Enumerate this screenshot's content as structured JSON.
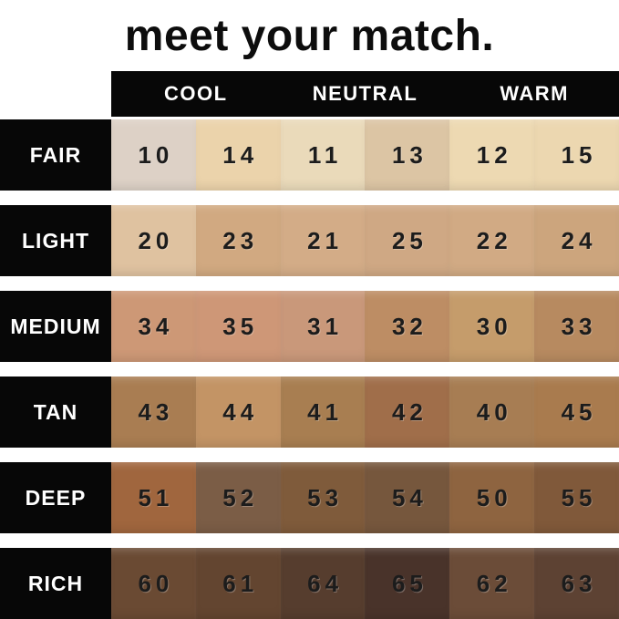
{
  "title": "meet your match.",
  "palette": {
    "background": "#ffffff",
    "bar_black": "#070707",
    "label_text": "#ffffff",
    "number_text": "#1c1c1c",
    "title_text": "#0d0d0d"
  },
  "chart_data": {
    "type": "table",
    "title": "meet your match.",
    "column_groups": [
      "COOL",
      "NEUTRAL",
      "WARM"
    ],
    "row_labels": [
      "FAIR",
      "LIGHT",
      "MEDIUM",
      "TAN",
      "DEEP",
      "RICH"
    ],
    "rows": [
      {
        "label": "FAIR",
        "shades": [
          {
            "number": "10",
            "color": "#ddd1c6"
          },
          {
            "number": "14",
            "color": "#ebd3ab"
          },
          {
            "number": "11",
            "color": "#eadaba"
          },
          {
            "number": "13",
            "color": "#dcc5a4"
          },
          {
            "number": "12",
            "color": "#edd9b2"
          },
          {
            "number": "15",
            "color": "#ecd7b0"
          }
        ]
      },
      {
        "label": "LIGHT",
        "shades": [
          {
            "number": "20",
            "color": "#dfc2a0"
          },
          {
            "number": "23",
            "color": "#d1a981"
          },
          {
            "number": "21",
            "color": "#d3ac87"
          },
          {
            "number": "25",
            "color": "#cfa884"
          },
          {
            "number": "22",
            "color": "#d1aa84"
          },
          {
            "number": "24",
            "color": "#cca57d"
          }
        ]
      },
      {
        "label": "MEDIUM",
        "shades": [
          {
            "number": "34",
            "color": "#cd9876"
          },
          {
            "number": "35",
            "color": "#ce9777"
          },
          {
            "number": "31",
            "color": "#c9987a"
          },
          {
            "number": "32",
            "color": "#bd8d64"
          },
          {
            "number": "30",
            "color": "#c59c6b"
          },
          {
            "number": "33",
            "color": "#b78a60"
          }
        ]
      },
      {
        "label": "TAN",
        "shades": [
          {
            "number": "43",
            "color": "#a97d52"
          },
          {
            "number": "44",
            "color": "#c39465"
          },
          {
            "number": "41",
            "color": "#a87e51"
          },
          {
            "number": "42",
            "color": "#a06e4a"
          },
          {
            "number": "40",
            "color": "#a77d53"
          },
          {
            "number": "45",
            "color": "#a97b4e"
          }
        ]
      },
      {
        "label": "DEEP",
        "shades": [
          {
            "number": "51",
            "color": "#a0663e"
          },
          {
            "number": "52",
            "color": "#7b5d46"
          },
          {
            "number": "53",
            "color": "#7f5b3b"
          },
          {
            "number": "54",
            "color": "#76573d"
          },
          {
            "number": "50",
            "color": "#8e6440"
          },
          {
            "number": "55",
            "color": "#80593a"
          }
        ]
      },
      {
        "label": "RICH",
        "shades": [
          {
            "number": "60",
            "color": "#6a4a33"
          },
          {
            "number": "61",
            "color": "#634530"
          },
          {
            "number": "64",
            "color": "#563d2e"
          },
          {
            "number": "65",
            "color": "#49332a"
          },
          {
            "number": "62",
            "color": "#6b4c38"
          },
          {
            "number": "63",
            "color": "#5d4233"
          }
        ]
      }
    ]
  }
}
